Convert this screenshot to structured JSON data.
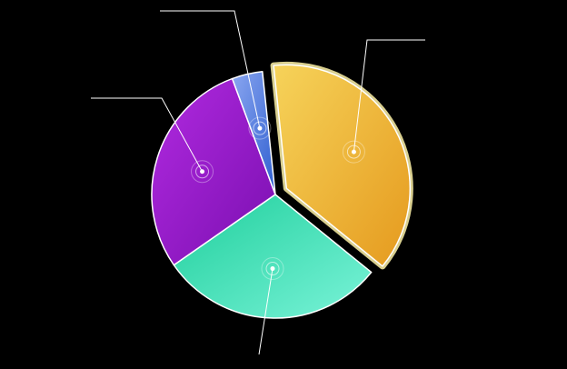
{
  "chart_data": {
    "type": "pie",
    "title": "",
    "slices": [
      {
        "label": "",
        "value": 37.5,
        "color_start": "#f6d35a",
        "color_end": "#e59a1e",
        "exploded": true
      },
      {
        "label": "",
        "value": 29.5,
        "color_start": "#1fcf9c",
        "color_end": "#7af3d8",
        "exploded": false
      },
      {
        "label": "",
        "value": 29.0,
        "color_start": "#b12ae0",
        "color_end": "#7a0fb0",
        "exploded": false
      },
      {
        "label": "",
        "value": 4.0,
        "color_start": "#8aa6f0",
        "color_end": "#2f5fd0",
        "exploded": false
      }
    ],
    "start_angle_deg": -6,
    "legend": "none",
    "data_labels": "callouts"
  },
  "colors": {
    "background": "#000000",
    "leader_line": "#ffffff",
    "highlight": "#fff3a8"
  }
}
